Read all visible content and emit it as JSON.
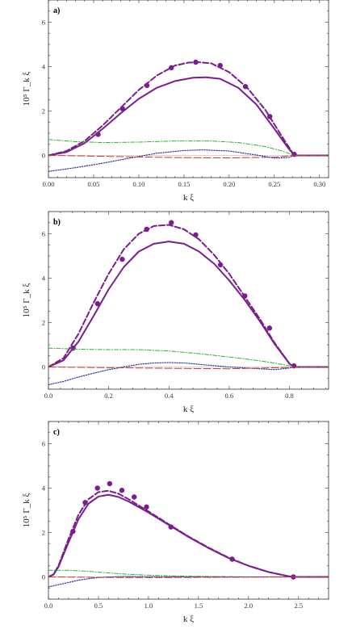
{
  "colors": {
    "purple": "#7a1e8e",
    "green": "#2bb52b",
    "blue": "#2b2b9c",
    "red": "#c0392b",
    "axis": "#333333"
  },
  "chart_data": [
    {
      "type": "line",
      "panel_label": "a)",
      "xlabel": "k ξ",
      "ylabel": "10⁵ Γ_k ξ",
      "xlim": [
        0,
        0.31
      ],
      "ylim": [
        -1,
        7
      ],
      "xticks": [
        0.0,
        0.05,
        0.1,
        0.15,
        0.2,
        0.25,
        0.3
      ],
      "xtick_labels": [
        "0.00",
        "0.05",
        "0.10",
        "0.15",
        "0.20",
        "0.25",
        "0.30"
      ],
      "yticks": [
        0,
        2,
        4,
        6
      ],
      "ytick_labels": [
        "0",
        "2",
        "4",
        "6"
      ],
      "grid": false,
      "series": [
        {
          "style": "solid",
          "color": "purple",
          "x": [
            0,
            0.02,
            0.04,
            0.06,
            0.08,
            0.1,
            0.12,
            0.14,
            0.16,
            0.175,
            0.19,
            0.21,
            0.23,
            0.25,
            0.265,
            0.272,
            0.31
          ],
          "y": [
            0,
            0.15,
            0.55,
            1.2,
            1.9,
            2.55,
            3.05,
            3.35,
            3.5,
            3.52,
            3.45,
            3.05,
            2.3,
            1.2,
            0.35,
            0,
            0
          ]
        },
        {
          "style": "dashed",
          "color": "purple",
          "x": [
            0,
            0.02,
            0.04,
            0.06,
            0.08,
            0.1,
            0.12,
            0.14,
            0.155,
            0.165,
            0.18,
            0.2,
            0.22,
            0.24,
            0.26,
            0.272,
            0.31
          ],
          "y": [
            0,
            0.2,
            0.65,
            1.35,
            2.15,
            2.95,
            3.6,
            4.05,
            4.18,
            4.2,
            4.15,
            3.75,
            3.05,
            2.05,
            0.75,
            0,
            0
          ]
        },
        {
          "style": "points",
          "color": "purple",
          "x": [
            0.055,
            0.082,
            0.109,
            0.136,
            0.163,
            0.19,
            0.218,
            0.245,
            0.272
          ],
          "y": [
            0.95,
            2.1,
            3.15,
            3.95,
            4.2,
            4.05,
            3.1,
            1.75,
            0.05
          ]
        },
        {
          "style": "dashdot",
          "color": "green",
          "x": [
            0,
            0.03,
            0.06,
            0.1,
            0.14,
            0.18,
            0.21,
            0.24,
            0.26,
            0.272,
            0.31
          ],
          "y": [
            0.72,
            0.62,
            0.58,
            0.6,
            0.65,
            0.65,
            0.58,
            0.4,
            0.18,
            0,
            0
          ]
        },
        {
          "style": "dotted",
          "color": "blue",
          "x": [
            0,
            0.03,
            0.06,
            0.09,
            0.12,
            0.15,
            0.17,
            0.2,
            0.23,
            0.25,
            0.265,
            0.272,
            0.31
          ],
          "y": [
            -0.72,
            -0.55,
            -0.35,
            -0.12,
            0.1,
            0.22,
            0.25,
            0.2,
            0.02,
            -0.12,
            -0.1,
            0,
            0
          ]
        },
        {
          "style": "longdash",
          "color": "red",
          "x": [
            0,
            0.05,
            0.1,
            0.15,
            0.2,
            0.25,
            0.272,
            0.31
          ],
          "y": [
            0,
            -0.03,
            -0.07,
            -0.1,
            -0.11,
            -0.08,
            0,
            0
          ]
        }
      ]
    },
    {
      "type": "line",
      "panel_label": "b)",
      "xlabel": "k ξ",
      "ylabel": "10⁵ Γ_k ξ",
      "xlim": [
        0,
        0.93
      ],
      "ylim": [
        -1,
        7
      ],
      "xticks": [
        0,
        0.2,
        0.4,
        0.6,
        0.8
      ],
      "xtick_labels": [
        "0.0",
        "0.2",
        "0.4",
        "0.6",
        "0.8"
      ],
      "yticks": [
        0,
        2,
        4,
        6
      ],
      "ytick_labels": [
        "0",
        "2",
        "4",
        "6"
      ],
      "grid": false,
      "series": [
        {
          "style": "solid",
          "color": "purple",
          "x": [
            0,
            0.05,
            0.1,
            0.15,
            0.2,
            0.25,
            0.3,
            0.35,
            0.4,
            0.45,
            0.5,
            0.55,
            0.6,
            0.65,
            0.7,
            0.75,
            0.8,
            0.815,
            0.93
          ],
          "y": [
            0,
            0.3,
            1.15,
            2.3,
            3.5,
            4.5,
            5.2,
            5.55,
            5.65,
            5.55,
            5.2,
            4.65,
            3.9,
            3.05,
            2.1,
            1.05,
            0.15,
            0,
            0
          ]
        },
        {
          "style": "dashed",
          "color": "purple",
          "x": [
            0,
            0.05,
            0.1,
            0.15,
            0.2,
            0.25,
            0.3,
            0.35,
            0.4,
            0.45,
            0.5,
            0.55,
            0.6,
            0.65,
            0.7,
            0.75,
            0.8,
            0.815,
            0.93
          ],
          "y": [
            0,
            0.4,
            1.5,
            2.9,
            4.2,
            5.3,
            6.0,
            6.35,
            6.4,
            6.2,
            5.75,
            5.05,
            4.2,
            3.2,
            2.2,
            1.1,
            0.15,
            0,
            0
          ]
        },
        {
          "style": "points",
          "color": "purple",
          "x": [
            0.082,
            0.163,
            0.245,
            0.326,
            0.408,
            0.489,
            0.571,
            0.652,
            0.734,
            0.815
          ],
          "y": [
            0.85,
            2.85,
            4.85,
            6.2,
            6.5,
            5.95,
            4.6,
            3.2,
            1.75,
            0.05
          ]
        },
        {
          "style": "dashdot",
          "color": "green",
          "x": [
            0,
            0.1,
            0.2,
            0.3,
            0.4,
            0.5,
            0.6,
            0.7,
            0.75,
            0.8,
            0.815,
            0.93
          ],
          "y": [
            0.85,
            0.8,
            0.78,
            0.78,
            0.72,
            0.6,
            0.45,
            0.28,
            0.18,
            0.05,
            0,
            0
          ]
        },
        {
          "style": "dotted",
          "color": "blue",
          "x": [
            0,
            0.05,
            0.1,
            0.15,
            0.2,
            0.25,
            0.3,
            0.35,
            0.4,
            0.45,
            0.5,
            0.6,
            0.7,
            0.75,
            0.8,
            0.815,
            0.93
          ],
          "y": [
            -0.8,
            -0.65,
            -0.45,
            -0.28,
            -0.12,
            0.0,
            0.12,
            0.18,
            0.2,
            0.18,
            0.12,
            0.0,
            -0.08,
            -0.12,
            -0.05,
            0,
            0
          ]
        },
        {
          "style": "longdash",
          "color": "red",
          "x": [
            0,
            0.2,
            0.4,
            0.6,
            0.8,
            0.815,
            0.93
          ],
          "y": [
            0,
            -0.03,
            -0.06,
            -0.08,
            -0.02,
            0,
            0
          ]
        }
      ]
    },
    {
      "type": "line",
      "panel_label": "c)",
      "xlabel": "k ξ",
      "ylabel": "10⁵ Γ_k ξ",
      "xlim": [
        0,
        2.8
      ],
      "ylim": [
        -1,
        7
      ],
      "xticks": [
        0,
        0.5,
        1,
        1.5,
        2,
        2.5
      ],
      "xtick_labels": [
        "0.0",
        "0.5",
        "1.0",
        "1.5",
        "2.0",
        "2.5"
      ],
      "yticks": [
        0,
        2,
        4,
        6
      ],
      "ytick_labels": [
        "0",
        "2",
        "4",
        "6"
      ],
      "grid": false,
      "series": [
        {
          "style": "solid",
          "color": "purple",
          "x": [
            0,
            0.05,
            0.1,
            0.2,
            0.3,
            0.4,
            0.5,
            0.6,
            0.7,
            0.8,
            1.0,
            1.2,
            1.4,
            1.6,
            1.8,
            2.0,
            2.2,
            2.4,
            2.45,
            2.8
          ],
          "y": [
            0,
            0.1,
            0.45,
            1.55,
            2.6,
            3.3,
            3.62,
            3.7,
            3.6,
            3.4,
            2.9,
            2.35,
            1.8,
            1.3,
            0.85,
            0.5,
            0.22,
            0.03,
            0,
            0
          ]
        },
        {
          "style": "dashed",
          "color": "purple",
          "x": [
            0,
            0.05,
            0.1,
            0.2,
            0.3,
            0.4,
            0.5,
            0.6,
            0.7,
            0.8,
            1.0,
            1.2,
            1.4,
            1.6,
            1.8,
            2.0,
            2.2,
            2.4,
            2.45,
            2.8
          ],
          "y": [
            0,
            0.12,
            0.5,
            1.7,
            2.8,
            3.5,
            3.82,
            3.88,
            3.75,
            3.5,
            2.95,
            2.38,
            1.82,
            1.32,
            0.87,
            0.5,
            0.22,
            0.03,
            0,
            0
          ]
        },
        {
          "style": "points",
          "color": "purple",
          "x": [
            0.245,
            0.367,
            0.49,
            0.612,
            0.734,
            0.857,
            0.98,
            1.224,
            1.836,
            2.448
          ],
          "y": [
            2.05,
            3.35,
            4.0,
            4.2,
            3.9,
            3.6,
            3.15,
            2.25,
            0.8,
            0.0
          ]
        },
        {
          "style": "dashdot",
          "color": "green",
          "x": [
            0,
            0.2,
            0.4,
            0.6,
            0.8,
            1.0,
            1.2,
            1.4,
            1.6,
            1.8,
            2.0,
            2.2,
            2.45,
            2.8
          ],
          "y": [
            0.3,
            0.3,
            0.25,
            0.18,
            0.12,
            0.08,
            0.05,
            0.03,
            0.02,
            0.01,
            0.0,
            0.0,
            0,
            0
          ]
        },
        {
          "style": "dotted",
          "color": "blue",
          "x": [
            0,
            0.1,
            0.2,
            0.3,
            0.4,
            0.5,
            0.6,
            0.8,
            1.0,
            1.5,
            2.0,
            2.45,
            2.8
          ],
          "y": [
            -0.45,
            -0.35,
            -0.25,
            -0.15,
            -0.08,
            -0.03,
            0.0,
            0.02,
            0.01,
            0.0,
            0.0,
            0,
            0
          ]
        },
        {
          "style": "longdash",
          "color": "red",
          "x": [
            0,
            0.5,
            1.0,
            1.5,
            2.0,
            2.45,
            2.8
          ],
          "y": [
            0,
            -0.02,
            -0.03,
            -0.02,
            -0.01,
            0,
            0
          ]
        }
      ]
    }
  ]
}
